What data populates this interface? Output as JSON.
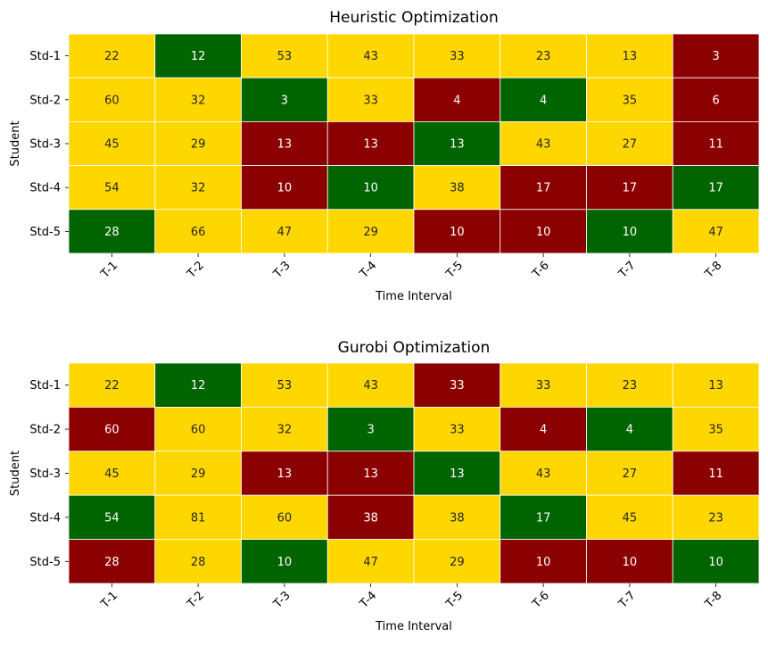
{
  "colors": {
    "green": "#006400",
    "yellow": "#FFD700",
    "red": "#8B0000",
    "light_text": "#ffffff",
    "dark_text": "#262626"
  },
  "chart_data": [
    {
      "type": "heatmap",
      "title": "Heuristic Optimization",
      "xlabel": "Time Interval",
      "ylabel": "Student",
      "x_tick_labels": [
        "T-1",
        "T-2",
        "T-3",
        "T-4",
        "T-5",
        "T-6",
        "T-7",
        "T-8"
      ],
      "y_tick_labels": [
        "Std-1",
        "Std-2",
        "Std-3",
        "Std-4",
        "Std-5"
      ],
      "values": [
        [
          22,
          12,
          53,
          43,
          33,
          23,
          13,
          3
        ],
        [
          60,
          32,
          3,
          33,
          4,
          4,
          35,
          6
        ],
        [
          45,
          29,
          13,
          13,
          13,
          43,
          27,
          11
        ],
        [
          54,
          32,
          10,
          10,
          38,
          17,
          17,
          17
        ],
        [
          28,
          66,
          47,
          29,
          10,
          10,
          10,
          47
        ]
      ],
      "cell_colors": [
        [
          "yellow",
          "green",
          "yellow",
          "yellow",
          "yellow",
          "yellow",
          "yellow",
          "red"
        ],
        [
          "yellow",
          "yellow",
          "green",
          "yellow",
          "red",
          "green",
          "yellow",
          "red"
        ],
        [
          "yellow",
          "yellow",
          "red",
          "red",
          "green",
          "yellow",
          "yellow",
          "red"
        ],
        [
          "yellow",
          "yellow",
          "red",
          "green",
          "yellow",
          "red",
          "red",
          "green"
        ],
        [
          "green",
          "yellow",
          "yellow",
          "yellow",
          "red",
          "red",
          "green",
          "yellow"
        ]
      ]
    },
    {
      "type": "heatmap",
      "title": "Gurobi Optimization",
      "xlabel": "Time Interval",
      "ylabel": "Student",
      "x_tick_labels": [
        "T-1",
        "T-2",
        "T-3",
        "T-4",
        "T-5",
        "T-6",
        "T-7",
        "T-8"
      ],
      "y_tick_labels": [
        "Std-1",
        "Std-2",
        "Std-3",
        "Std-4",
        "Std-5"
      ],
      "values": [
        [
          22,
          12,
          53,
          43,
          33,
          33,
          23,
          13
        ],
        [
          60,
          60,
          32,
          3,
          33,
          4,
          4,
          35
        ],
        [
          45,
          29,
          13,
          13,
          13,
          43,
          27,
          11
        ],
        [
          54,
          81,
          60,
          38,
          38,
          17,
          45,
          23
        ],
        [
          28,
          28,
          10,
          47,
          29,
          10,
          10,
          10
        ]
      ],
      "cell_colors": [
        [
          "yellow",
          "green",
          "yellow",
          "yellow",
          "red",
          "yellow",
          "yellow",
          "yellow"
        ],
        [
          "red",
          "yellow",
          "yellow",
          "green",
          "yellow",
          "red",
          "green",
          "yellow"
        ],
        [
          "yellow",
          "yellow",
          "red",
          "red",
          "green",
          "yellow",
          "yellow",
          "red"
        ],
        [
          "green",
          "yellow",
          "yellow",
          "red",
          "yellow",
          "green",
          "yellow",
          "yellow"
        ],
        [
          "red",
          "yellow",
          "green",
          "yellow",
          "yellow",
          "red",
          "red",
          "green"
        ]
      ]
    }
  ]
}
